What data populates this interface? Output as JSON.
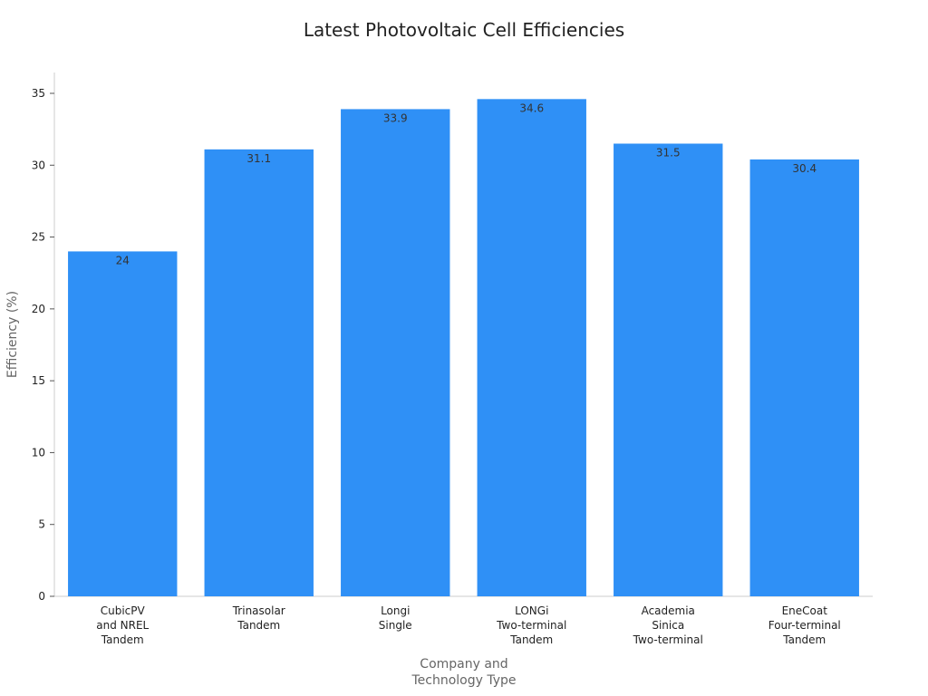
{
  "chart_data": {
    "type": "bar",
    "title": "Latest Photovoltaic Cell Efficiencies",
    "x_label": "Company and\nTechnology Type",
    "y_label": "Efficiency (%)",
    "categories": [
      "CubicPV\nand NREL\nTandem",
      "Trinasolar\nTandem",
      "Longi\nSingle",
      "LONGi\nTwo-terminal\nTandem",
      "Academia\nSinica\nTwo-terminal",
      "EneCoat\nFour-terminal\nTandem"
    ],
    "values": [
      24,
      31.1,
      33.9,
      34.6,
      31.5,
      30.4
    ],
    "color": "#2f90f6",
    "ylim": [
      0,
      36.45
    ],
    "yticks": [
      0,
      5,
      10,
      15,
      20,
      25,
      30,
      35
    ],
    "grid": false
  }
}
